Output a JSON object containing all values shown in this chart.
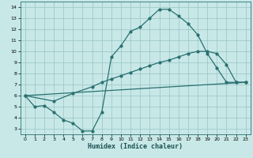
{
  "xlabel": "Humidex (Indice chaleur)",
  "background_color": "#c8e8e8",
  "grid_color": "#a0c8c8",
  "line_color": "#2a7070",
  "xlim": [
    -0.5,
    23.5
  ],
  "ylim": [
    2.5,
    14.5
  ],
  "xticks": [
    0,
    1,
    2,
    3,
    4,
    5,
    6,
    7,
    8,
    9,
    10,
    11,
    12,
    13,
    14,
    15,
    16,
    17,
    18,
    19,
    20,
    21,
    22,
    23
  ],
  "yticks": [
    3,
    4,
    5,
    6,
    7,
    8,
    9,
    10,
    11,
    12,
    13,
    14
  ],
  "line1_x": [
    0,
    1,
    2,
    3,
    4,
    5,
    6,
    7,
    8,
    9,
    10,
    11,
    12,
    13,
    14,
    15,
    16,
    17,
    18,
    19,
    20,
    21,
    22,
    23
  ],
  "line1_y": [
    6.0,
    5.0,
    5.1,
    4.5,
    3.8,
    3.5,
    2.8,
    2.8,
    4.5,
    9.5,
    10.5,
    11.8,
    12.2,
    13.0,
    13.8,
    13.8,
    13.2,
    12.5,
    11.5,
    9.8,
    8.5,
    7.2,
    7.2,
    7.2
  ],
  "line2_x": [
    0,
    3,
    5,
    7,
    8,
    9,
    10,
    11,
    12,
    13,
    14,
    15,
    16,
    17,
    18,
    19,
    20,
    21,
    22,
    23
  ],
  "line2_y": [
    6.0,
    5.5,
    6.2,
    6.8,
    7.2,
    7.5,
    7.8,
    8.1,
    8.4,
    8.7,
    9.0,
    9.2,
    9.5,
    9.8,
    10.0,
    10.0,
    9.8,
    8.8,
    7.2,
    7.2
  ],
  "line3_x": [
    0,
    23
  ],
  "line3_y": [
    6.0,
    7.2
  ]
}
